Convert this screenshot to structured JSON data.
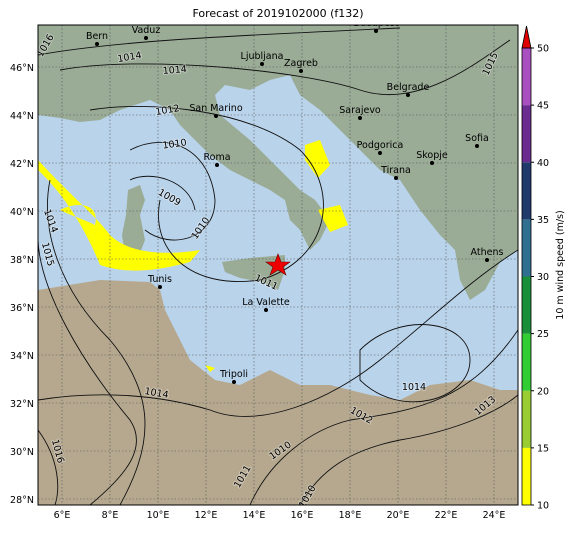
{
  "title": "Forecast of 2019102000 (f132)",
  "x_ticks": [
    "6°E",
    "8°E",
    "10°E",
    "12°E",
    "14°E",
    "16°E",
    "18°E",
    "20°E",
    "22°E",
    "24°E"
  ],
  "y_ticks": [
    "28°N",
    "30°N",
    "32°N",
    "34°N",
    "36°N",
    "38°N",
    "40°N",
    "42°N",
    "44°N",
    "46°N"
  ],
  "cities": [
    "Bern",
    "Vaduz",
    "Budapest",
    "Ljubljana",
    "Zagreb",
    "Belgrade",
    "San Marino",
    "Sarajevo",
    "Roma",
    "Podgorica",
    "Sofia",
    "Skopje",
    "Tirana",
    "Athens",
    "Tunis",
    "La Valette",
    "Tripoli"
  ],
  "isobar_labels": [
    "1016",
    "1014",
    "1014",
    "1012",
    "1010",
    "1009",
    "1010",
    "1014",
    "1015",
    "1011",
    "1014",
    "1012",
    "1010",
    "1011",
    "1010",
    "1014",
    "1013",
    "1016",
    "1015"
  ],
  "colorbar": {
    "label": "10 m wind speed (m/s)",
    "lim": [
      10,
      50
    ],
    "ticks": [
      10,
      15,
      20,
      25,
      30,
      35,
      40,
      45,
      50
    ]
  }
}
